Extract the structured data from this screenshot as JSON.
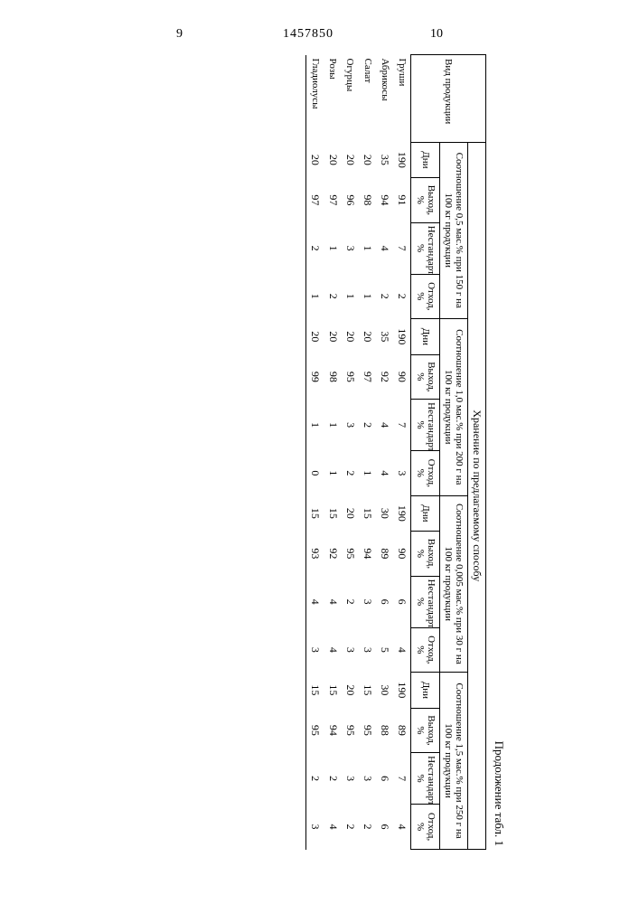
{
  "page": {
    "doc_number": "1457850",
    "page_left": "9",
    "page_right": "10",
    "caption": "Продолжение табл. 1"
  },
  "table": {
    "head": {
      "prod_label": "Вид продукции",
      "storage_label": "Хранение по предлагаемому способу",
      "groups": [
        {
          "label": "Соотношение 0,5 мас.% при 150 г на 100 кг продукции"
        },
        {
          "label": "Соотношение 1,0 мас.% при 200 г на 100 кг продукции"
        },
        {
          "label": "Соотношение 0,005 мас.% при 30 г на 100 кг продукции"
        },
        {
          "label": "Соотношение 1,5 мас.% при 250 г на 100 кг продукции"
        }
      ],
      "sub": {
        "dni": "Дни",
        "vyhod": "Выход, %",
        "nestd": "Нестандарт, %",
        "othod": "Отход, %"
      }
    },
    "rows": [
      {
        "name": "Груши",
        "g1": {
          "dni": "190",
          "vyhod": "91",
          "nestd": "7",
          "othod": "2"
        },
        "g2": {
          "dni": "190",
          "vyhod": "90",
          "nestd": "7",
          "othod": "3"
        },
        "g3": {
          "dni": "190",
          "vyhod": "90",
          "nestd": "6",
          "othod": "4"
        },
        "g4": {
          "dni": "190",
          "vyhod": "89",
          "nestd": "7",
          "othod": "4"
        }
      },
      {
        "name": "Абрикосы",
        "g1": {
          "dni": "35",
          "vyhod": "94",
          "nestd": "4",
          "othod": "2"
        },
        "g2": {
          "dni": "35",
          "vyhod": "92",
          "nestd": "4",
          "othod": "4"
        },
        "g3": {
          "dni": "30",
          "vyhod": "89",
          "nestd": "6",
          "othod": "5"
        },
        "g4": {
          "dni": "30",
          "vyhod": "88",
          "nestd": "6",
          "othod": "6"
        }
      },
      {
        "name": "Салат",
        "g1": {
          "dni": "20",
          "vyhod": "98",
          "nestd": "1",
          "othod": "1"
        },
        "g2": {
          "dni": "20",
          "vyhod": "97",
          "nestd": "2",
          "othod": "1"
        },
        "g3": {
          "dni": "15",
          "vyhod": "94",
          "nestd": "3",
          "othod": "3"
        },
        "g4": {
          "dni": "15",
          "vyhod": "95",
          "nestd": "3",
          "othod": "2"
        }
      },
      {
        "name": "Огурцы",
        "g1": {
          "dni": "20",
          "vyhod": "96",
          "nestd": "3",
          "othod": "1"
        },
        "g2": {
          "dni": "20",
          "vyhod": "95",
          "nestd": "3",
          "othod": "2"
        },
        "g3": {
          "dni": "20",
          "vyhod": "95",
          "nestd": "2",
          "othod": "3"
        },
        "g4": {
          "dni": "20",
          "vyhod": "95",
          "nestd": "3",
          "othod": "2"
        }
      },
      {
        "name": "Розы",
        "g1": {
          "dni": "20",
          "vyhod": "97",
          "nestd": "1",
          "othod": "2"
        },
        "g2": {
          "dni": "20",
          "vyhod": "98",
          "nestd": "1",
          "othod": "1"
        },
        "g3": {
          "dni": "15",
          "vyhod": "92",
          "nestd": "4",
          "othod": "4"
        },
        "g4": {
          "dni": "15",
          "vyhod": "94",
          "nestd": "2",
          "othod": "4"
        }
      },
      {
        "name": "Гладиолусы",
        "g1": {
          "dni": "20",
          "vyhod": "97",
          "nestd": "2",
          "othod": "1"
        },
        "g2": {
          "dni": "20",
          "vyhod": "99",
          "nestd": "1",
          "othod": "0"
        },
        "g3": {
          "dni": "15",
          "vyhod": "93",
          "nestd": "4",
          "othod": "3"
        },
        "g4": {
          "dni": "15",
          "vyhod": "95",
          "nestd": "2",
          "othod": "3"
        }
      }
    ]
  }
}
